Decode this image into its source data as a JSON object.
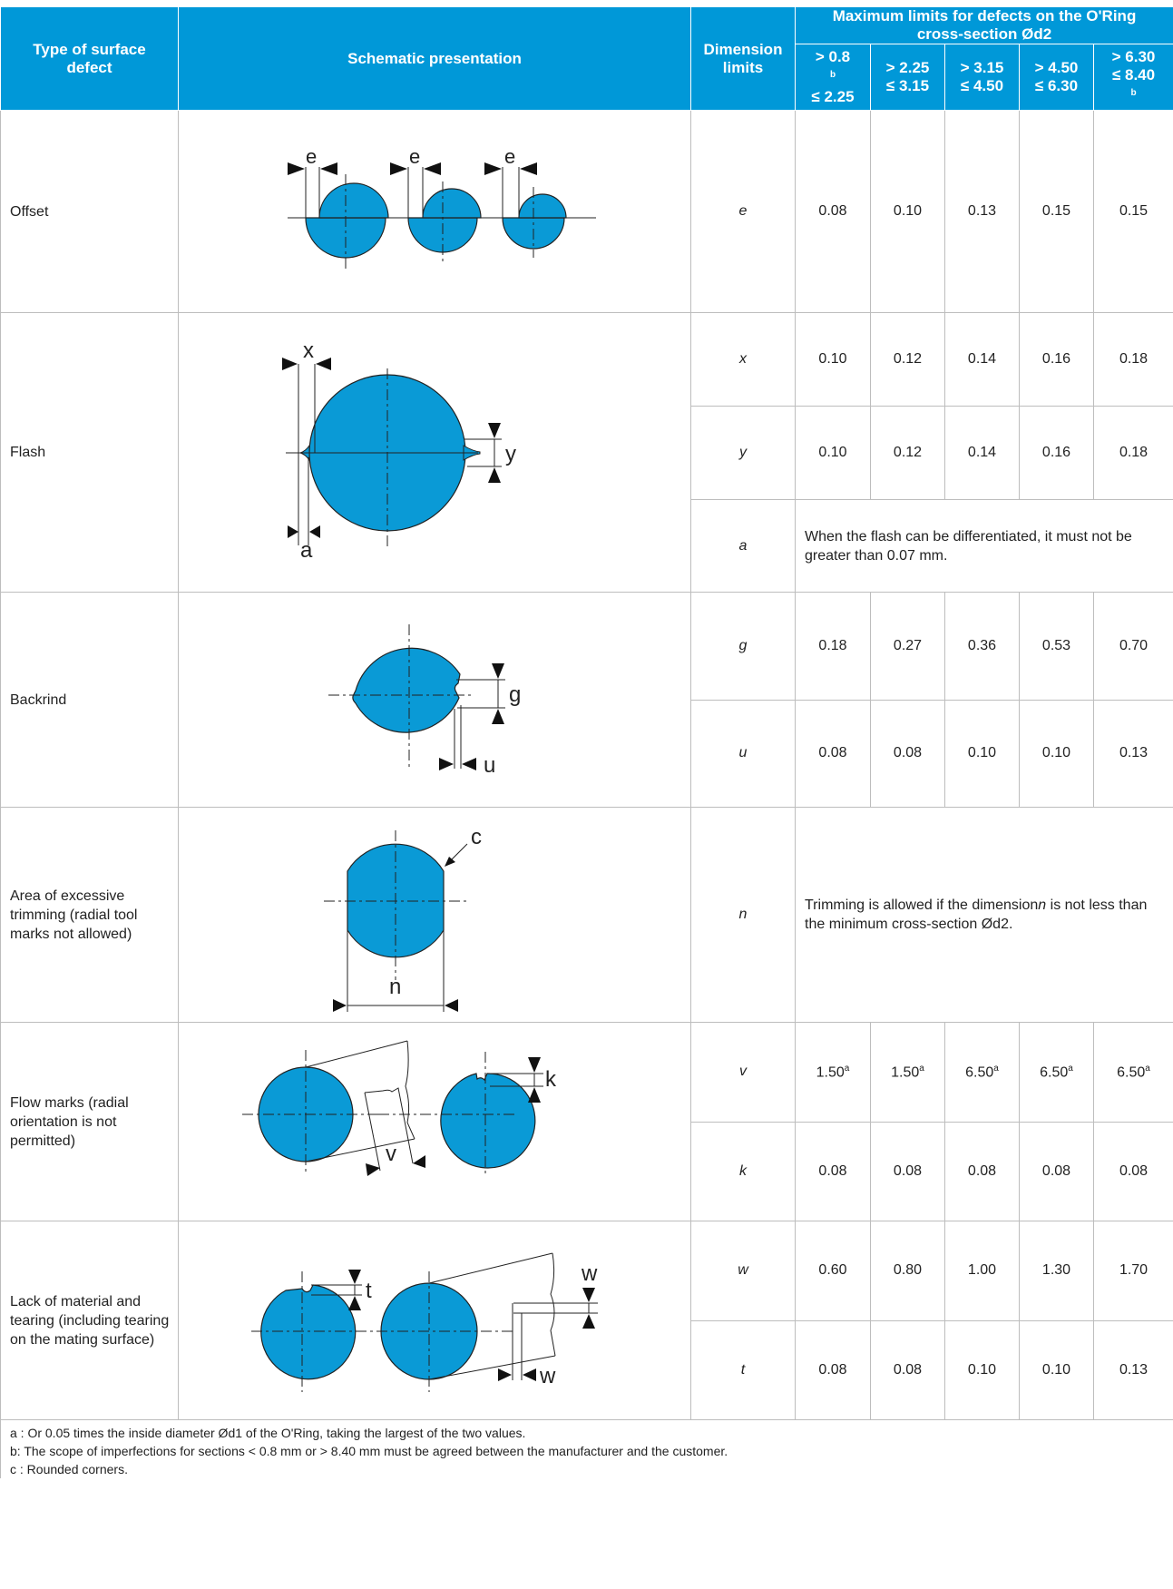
{
  "header": {
    "type_of_defect": "Type of surface defect",
    "schematic": "Schematic presentation",
    "dimension_limits": "Dimension limits",
    "max_limits": "Maximum limits for defects on the O'Ring cross-section Ød2",
    "ranges": [
      {
        "top": "> 0.8",
        "top_sup": "b",
        "bottom": "≤ 2.25",
        "bottom_sup": ""
      },
      {
        "top": "> 2.25",
        "top_sup": "",
        "bottom": "≤ 3.15",
        "bottom_sup": ""
      },
      {
        "top": "> 3.15",
        "top_sup": "",
        "bottom": "≤ 4.50",
        "bottom_sup": ""
      },
      {
        "top": "> 4.50",
        "top_sup": "",
        "bottom": "≤ 6.30",
        "bottom_sup": ""
      },
      {
        "top": "> 6.30",
        "top_sup": "",
        "bottom": "≤ 8.40",
        "bottom_sup": "b"
      }
    ]
  },
  "rows": {
    "offset": {
      "name": "Offset",
      "dim": "e",
      "values": [
        "0.08",
        "0.10",
        "0.13",
        "0.15",
        "0.15"
      ],
      "labels": {
        "e": "e"
      }
    },
    "flash": {
      "name": "Flash",
      "x": {
        "dim": "x",
        "values": [
          "0.10",
          "0.12",
          "0.14",
          "0.16",
          "0.18"
        ]
      },
      "y": {
        "dim": "y",
        "values": [
          "0.10",
          "0.12",
          "0.14",
          "0.16",
          "0.18"
        ]
      },
      "a": {
        "dim": "a",
        "note": "When the flash can be differentiated, it must not be greater than 0.07 mm."
      }
    },
    "backrind": {
      "name": "Backrind",
      "g": {
        "dim": "g",
        "values": [
          "0.18",
          "0.27",
          "0.36",
          "0.53",
          "0.70"
        ]
      },
      "u": {
        "dim": "u",
        "values": [
          "0.08",
          "0.08",
          "0.10",
          "0.10",
          "0.13"
        ]
      }
    },
    "trimming": {
      "name": "Area of excessive trimming (radial tool marks not allowed)",
      "dim": "n",
      "note_pre": "Trimming is allowed if the dimension",
      "note_var": "n",
      "note_post": " is not less than the minimum cross-section Ød2.",
      "label_c": "c"
    },
    "flow": {
      "name": "Flow marks (radial orientation is not permitted)",
      "v": {
        "dim": "v",
        "values": [
          "1.50",
          "1.50",
          "6.50",
          "6.50",
          "6.50"
        ],
        "sup": "a"
      },
      "k": {
        "dim": "k",
        "values": [
          "0.08",
          "0.08",
          "0.08",
          "0.08",
          "0.08"
        ]
      }
    },
    "lack": {
      "name": "Lack of material and tearing (including tearing on the mating surface)",
      "w": {
        "dim": "w",
        "values": [
          "0.60",
          "0.80",
          "1.00",
          "1.30",
          "1.70"
        ]
      },
      "t": {
        "dim": "t",
        "values": [
          "0.08",
          "0.08",
          "0.10",
          "0.10",
          "0.13"
        ]
      }
    }
  },
  "footnotes": [
    "a : Or 0.05 times the inside diameter Ød1 of the O'Ring, taking the largest of the two values.",
    "b: The scope of imperfections for sections < 0.8 mm or > 8.40 mm must be agreed between the manufacturer and the customer.",
    "c : Rounded corners."
  ],
  "colors": {
    "header_blue": "#0098d8",
    "shape_blue": "#0a9ad6",
    "grid": "#bdbdbd"
  }
}
